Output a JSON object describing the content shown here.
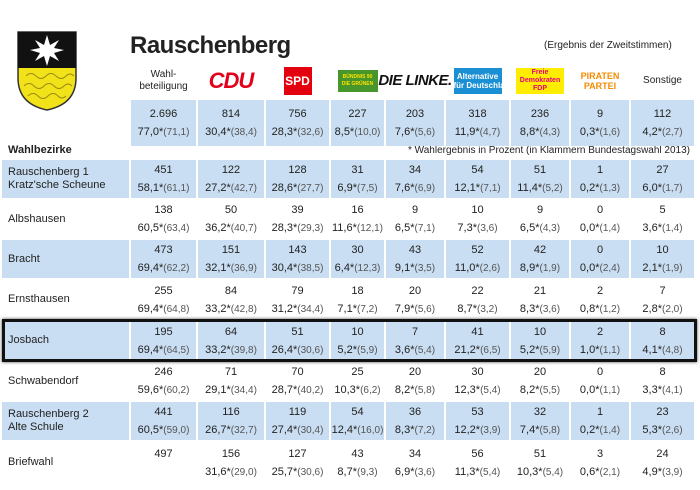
{
  "header": {
    "title": "Rauschenberg",
    "subtitle": "(Ergebnis der Zweitstimmen)"
  },
  "columns": [
    [
      "Wahl-",
      "beteiligung"
    ],
    [
      "CDU"
    ],
    [
      "SPD"
    ],
    [
      "BÜNDNIS 90",
      "DIE GRÜNEN"
    ],
    [
      "DIE LINKE."
    ],
    [
      "Alternative",
      "für Deutschland"
    ],
    [
      "Freie",
      "Demokraten",
      "FDP"
    ],
    [
      "PIRATEN",
      "PARTEI"
    ],
    [
      "Sonstige"
    ]
  ],
  "total": [
    [
      "2.696",
      "77,0*",
      "(71,1)"
    ],
    [
      "814",
      "30,4*",
      "(38,4)"
    ],
    [
      "756",
      "28,3*",
      "(32,6)"
    ],
    [
      "227",
      "8,5*",
      "(10,0)"
    ],
    [
      "203",
      "7,6*",
      "(5,6)"
    ],
    [
      "318",
      "11,9*",
      "(4,7)"
    ],
    [
      "236",
      "8,8*",
      "(4,3)"
    ],
    [
      "9",
      "0,3*",
      "(1,6)"
    ],
    [
      "112",
      "4,2*",
      "(2,7)"
    ]
  ],
  "section_label": "Wahlbezirke",
  "note": "* Wahlergebnis in Prozent (in Klammern Bundestagswahl 2013)",
  "rows": [
    {
      "name": [
        "Rauschenberg 1",
        "Kratz'sche Scheune"
      ],
      "cells": [
        [
          "451",
          "58,1*",
          "(61,1)"
        ],
        [
          "122",
          "27,2*",
          "(42,7)"
        ],
        [
          "128",
          "28,6*",
          "(27,7)"
        ],
        [
          "31",
          "6,9*",
          "(7,5)"
        ],
        [
          "34",
          "7,6*",
          "(6,9)"
        ],
        [
          "54",
          "12,1*",
          "(7,1)"
        ],
        [
          "51",
          "11,4*",
          "(5,2)"
        ],
        [
          "1",
          "0,2*",
          "(1,3)"
        ],
        [
          "27",
          "6,0*",
          "(1,7)"
        ]
      ]
    },
    {
      "name": [
        "Albshausen"
      ],
      "cells": [
        [
          "138",
          "60,5*",
          "(63,4)"
        ],
        [
          "50",
          "36,2*",
          "(40,7)"
        ],
        [
          "39",
          "28,3*",
          "(29,3)"
        ],
        [
          "16",
          "11,6*",
          "(12,1)"
        ],
        [
          "9",
          "6,5*",
          "(7,1)"
        ],
        [
          "10",
          "7,3*",
          "(3,6)"
        ],
        [
          "9",
          "6,5*",
          "(4,3)"
        ],
        [
          "0",
          "0,0*",
          "(1,4)"
        ],
        [
          "5",
          "3,6*",
          "(1,4)"
        ]
      ]
    },
    {
      "name": [
        "Bracht"
      ],
      "cells": [
        [
          "473",
          "69,4*",
          "(62,2)"
        ],
        [
          "151",
          "32,1*",
          "(36,9)"
        ],
        [
          "143",
          "30,4*",
          "(38,5)"
        ],
        [
          "30",
          "6,4*",
          "(12,3)"
        ],
        [
          "43",
          "9,1*",
          "(3,5)"
        ],
        [
          "52",
          "11,0*",
          "(2,6)"
        ],
        [
          "42",
          "8,9*",
          "(1,9)"
        ],
        [
          "0",
          "0,0*",
          "(2,4)"
        ],
        [
          "10",
          "2,1*",
          "(1,9)"
        ]
      ]
    },
    {
      "name": [
        "Ernsthausen"
      ],
      "cells": [
        [
          "255",
          "69,4*",
          "(64,8)"
        ],
        [
          "84",
          "33,2*",
          "(42,8)"
        ],
        [
          "79",
          "31,2*",
          "(34,4)"
        ],
        [
          "18",
          "7,1*",
          "(7,2)"
        ],
        [
          "20",
          "7,9*",
          "(5,6)"
        ],
        [
          "22",
          "8,7*",
          "(3,2)"
        ],
        [
          "21",
          "8,3*",
          "(3,6)"
        ],
        [
          "2",
          "0,8*",
          "(1,2)"
        ],
        [
          "7",
          "2,8*",
          "(2,0)"
        ]
      ]
    },
    {
      "name": [
        "Josbach"
      ],
      "cells": [
        [
          "195",
          "69,4*",
          "(64,5)"
        ],
        [
          "64",
          "33,2*",
          "(39,8)"
        ],
        [
          "51",
          "26,4*",
          "(30,6)"
        ],
        [
          "10",
          "5,2*",
          "(5,9)"
        ],
        [
          "7",
          "3,6*",
          "(5,4)"
        ],
        [
          "41",
          "21,2*",
          "(6,5)"
        ],
        [
          "10",
          "5,2*",
          "(5,9)"
        ],
        [
          "2",
          "1,0*",
          "(1,1)"
        ],
        [
          "8",
          "4,1*",
          "(4,8)"
        ]
      ]
    },
    {
      "name": [
        "Schwabendorf"
      ],
      "cells": [
        [
          "246",
          "59,6*",
          "(60,2)"
        ],
        [
          "71",
          "29,1*",
          "(34,4)"
        ],
        [
          "70",
          "28,7*",
          "(40,2)"
        ],
        [
          "25",
          "10,3*",
          "(6,2)"
        ],
        [
          "20",
          "8,2*",
          "(5,8)"
        ],
        [
          "30",
          "12,3*",
          "(5,4)"
        ],
        [
          "20",
          "8,2*",
          "(5,5)"
        ],
        [
          "0",
          "0,0*",
          "(1,1)"
        ],
        [
          "8",
          "3,3*",
          "(4,1)"
        ]
      ]
    },
    {
      "name": [
        "Rauschenberg 2",
        "Alte Schule"
      ],
      "cells": [
        [
          "441",
          "60,5*",
          "(59,0)"
        ],
        [
          "116",
          "26,7*",
          "(32,7)"
        ],
        [
          "119",
          "27,4*",
          "(30,4)"
        ],
        [
          "54",
          "12,4*",
          "(16,0)"
        ],
        [
          "36",
          "8,3*",
          "(7,2)"
        ],
        [
          "53",
          "12,2*",
          "(3,9)"
        ],
        [
          "32",
          "7,4*",
          "(5,8)"
        ],
        [
          "1",
          "0,2*",
          "(1,4)"
        ],
        [
          "23",
          "5,3*",
          "(2,6)"
        ]
      ]
    },
    {
      "name": [
        "Briefwahl"
      ],
      "cells": [
        [
          "497"
        ],
        [
          "156",
          "31,6*",
          "(29,0)"
        ],
        [
          "127",
          "25,7*",
          "(30,6)"
        ],
        [
          "43",
          "8,7*",
          "(9,3)"
        ],
        [
          "34",
          "6,9*",
          "(3,6)"
        ],
        [
          "56",
          "11,3*",
          "(5,4)"
        ],
        [
          "51",
          "10,3*",
          "(5,4)"
        ],
        [
          "3",
          "0,6*",
          "(2,1)"
        ],
        [
          "24",
          "4,9*",
          "(3,9)"
        ]
      ]
    }
  ]
}
